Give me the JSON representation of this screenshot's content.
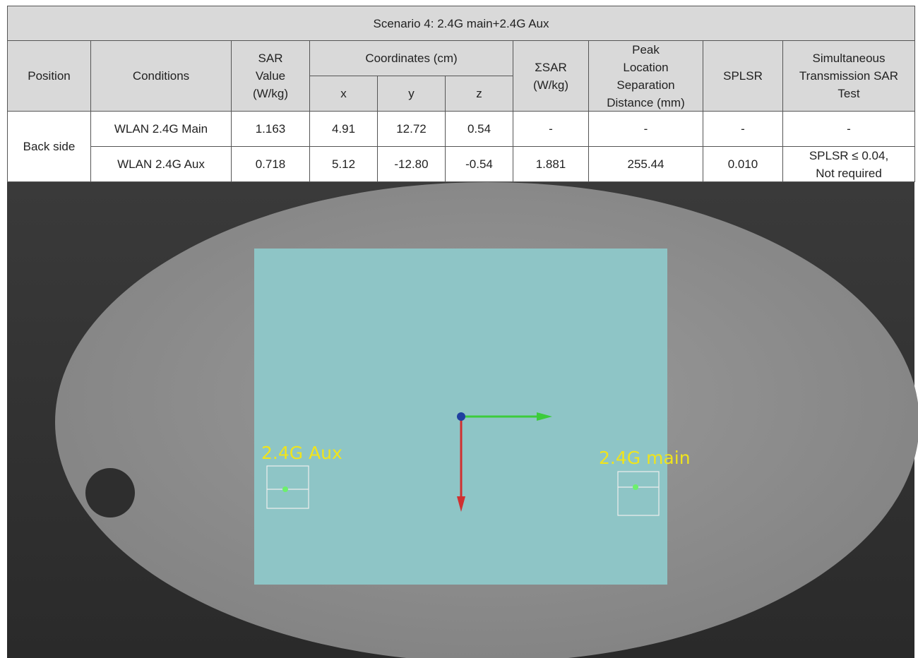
{
  "table": {
    "title": "Scenario 4: 2.4G main+2.4G Aux",
    "header": {
      "position": "Position",
      "conditions": "Conditions",
      "sar_value": [
        "SAR",
        "Value",
        "(W/kg)"
      ],
      "coordinates": "Coordinates (cm)",
      "x": "x",
      "y": "y",
      "z": "z",
      "sum_sar": [
        "ΣSAR",
        "(W/kg)"
      ],
      "peak_distance": [
        "Peak",
        "Location",
        "Separation",
        "Distance (mm)"
      ],
      "splsr": "SPLSR",
      "simultaneous": [
        "Simultaneous",
        "Transmission SAR",
        "Test"
      ]
    },
    "position": "Back side",
    "rows": [
      [
        "WLAN 2.4G Main",
        "1.163",
        "4.91",
        "12.72",
        "0.54",
        "-",
        "-",
        "-",
        "-"
      ],
      [
        "WLAN 2.4G Aux",
        "0.718",
        "5.12",
        "-12.80",
        "-0.54",
        "1.881",
        "255.44",
        "0.010",
        [
          "SPLSR ≤ 0.04,",
          "Not required"
        ]
      ]
    ]
  },
  "image": {
    "labels": [
      "2.4G Aux",
      "2.4G main"
    ]
  }
}
